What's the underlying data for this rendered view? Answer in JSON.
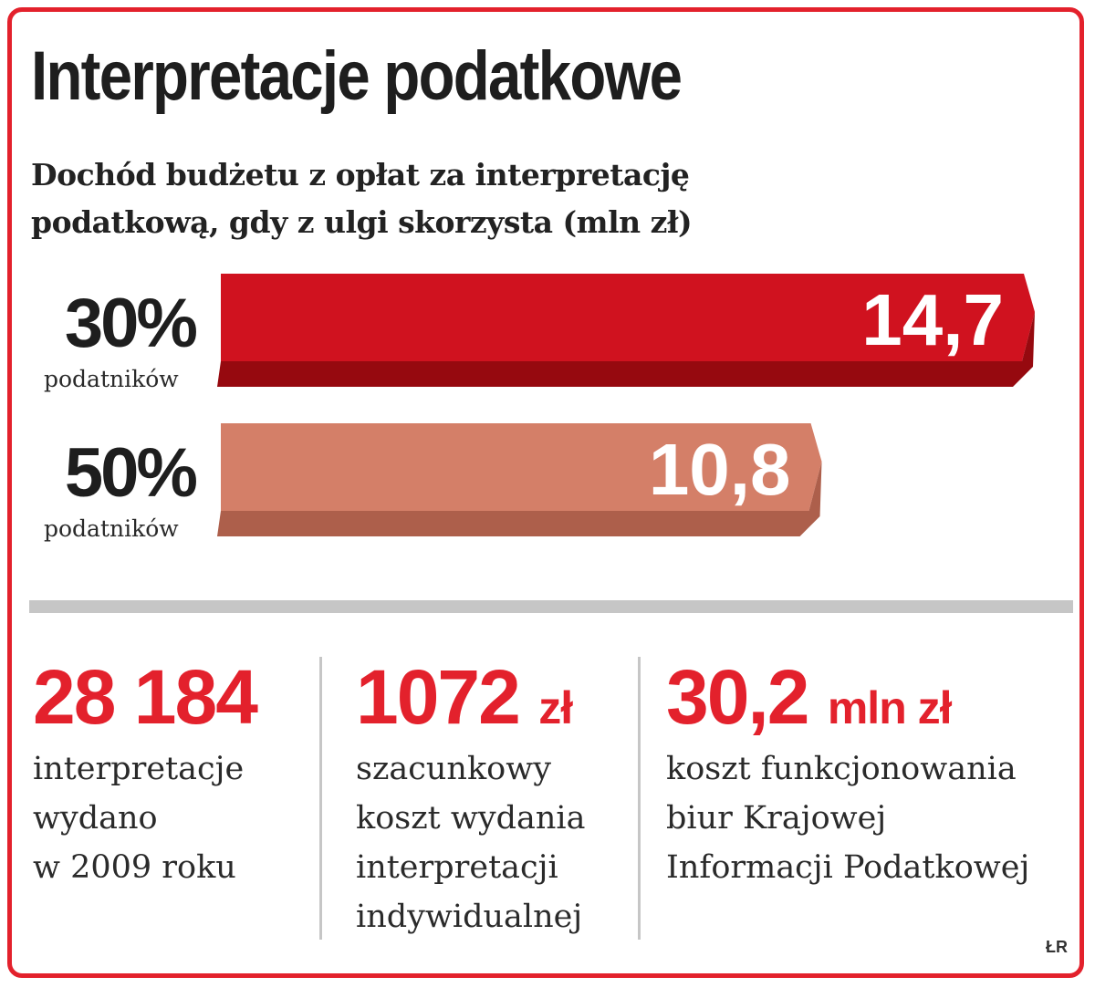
{
  "title": "Interpretacje podatkowe",
  "subtitle": "Dochód budżetu z opłat za interpretację podatkową, gdy z ulgi skorzysta (mln zł)",
  "chart_data": {
    "type": "bar",
    "orientation": "horizontal",
    "title": "Dochód budżetu z opłat za interpretację podatkową, gdy z ulgi skorzysta (mln zł)",
    "categories": [
      {
        "pct": "30%",
        "sub": "podatników"
      },
      {
        "pct": "50%",
        "sub": "podatników"
      }
    ],
    "values": [
      14.7,
      10.8
    ],
    "value_labels": [
      "14,7",
      "10,8"
    ],
    "colors": [
      {
        "front": "#d0121f",
        "shade": "#96090f"
      },
      {
        "front": "#d47f68",
        "shade": "#ad5f4b"
      }
    ]
  },
  "stats": [
    {
      "value": "28 184",
      "unit": "",
      "lines": [
        "interpretacje",
        "wydano",
        "w 2009 roku"
      ]
    },
    {
      "value": "1072",
      "unit": "zł",
      "lines": [
        "szacunkowy",
        "koszt wydania",
        "interpretacji",
        "indywidualnej"
      ]
    },
    {
      "value": "30,2",
      "unit": "mln zł",
      "lines": [
        "koszt funkcjonowania",
        "biur Krajowej",
        "Informacji Podatkowej"
      ]
    }
  ],
  "source": "ŁR",
  "colors": {
    "accent": "#e3212c",
    "divider": "#c6c6c6"
  }
}
